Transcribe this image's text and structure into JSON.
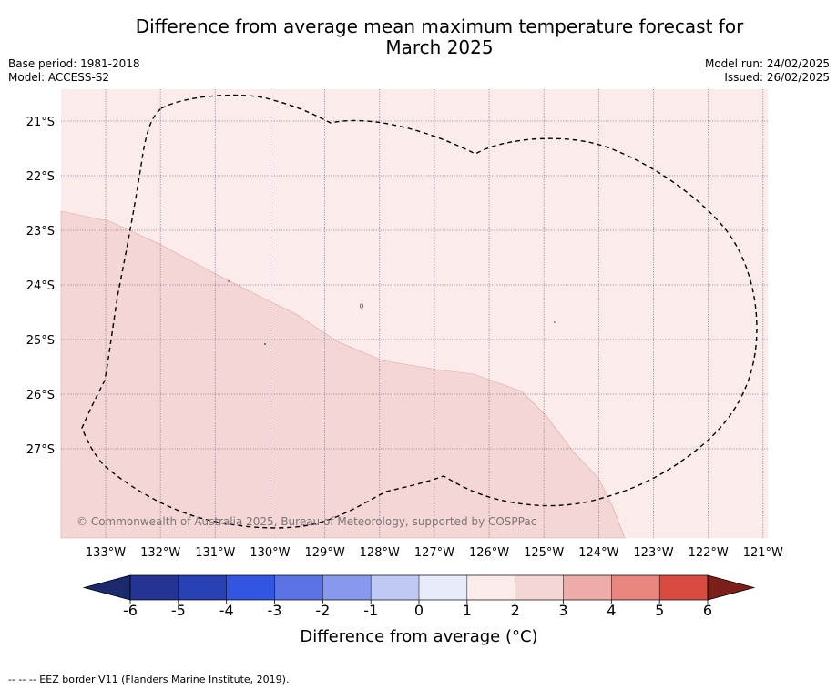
{
  "title": {
    "line1": "Difference from average mean maximum temperature forecast for",
    "line2": "March 2025"
  },
  "meta_left": {
    "base_period": "Base period: 1981-2018",
    "model": "Model: ACCESS-S2"
  },
  "meta_right": {
    "model_run": "Model run: 24/02/2025",
    "issued": "Issued: 26/02/2025"
  },
  "map": {
    "lat_labels": [
      "21°S",
      "22°S",
      "23°S",
      "24°S",
      "25°S",
      "26°S",
      "27°S"
    ],
    "lon_labels": [
      "133°W",
      "132°W",
      "131°W",
      "130°W",
      "129°W",
      "128°W",
      "127°W",
      "126°W",
      "125°W",
      "124°W",
      "123°W",
      "122°W",
      "121°W"
    ],
    "copyright": "© Commonwealth of Australia 2025, Bureau of Meteorology, supported by COSPPac",
    "fill_colors": {
      "range_0_1": "#fbeceb",
      "range_1_2": "#f4d6d5"
    }
  },
  "colorbar": {
    "tick_labels": [
      "-6",
      "-5",
      "-4",
      "-3",
      "-2",
      "-1",
      "0",
      "1",
      "2",
      "3",
      "4",
      "5",
      "6"
    ],
    "colors": [
      "#253494",
      "#2741b4",
      "#3256e0",
      "#5b72e4",
      "#8898ec",
      "#c0c8f4",
      "#e8ebfa",
      "#fbeceb",
      "#f4d6d5",
      "#edaca8",
      "#e8867f",
      "#d94b40",
      "#aa2a24",
      "#7c1e1a"
    ],
    "low_extension_color": "#1a2a6c",
    "high_extension_color": "#7c1e1a",
    "label": "Difference from average (°C)"
  },
  "footnote": "-- -- -- EEZ border V11 (Flanders Marine Institute, 2019)."
}
